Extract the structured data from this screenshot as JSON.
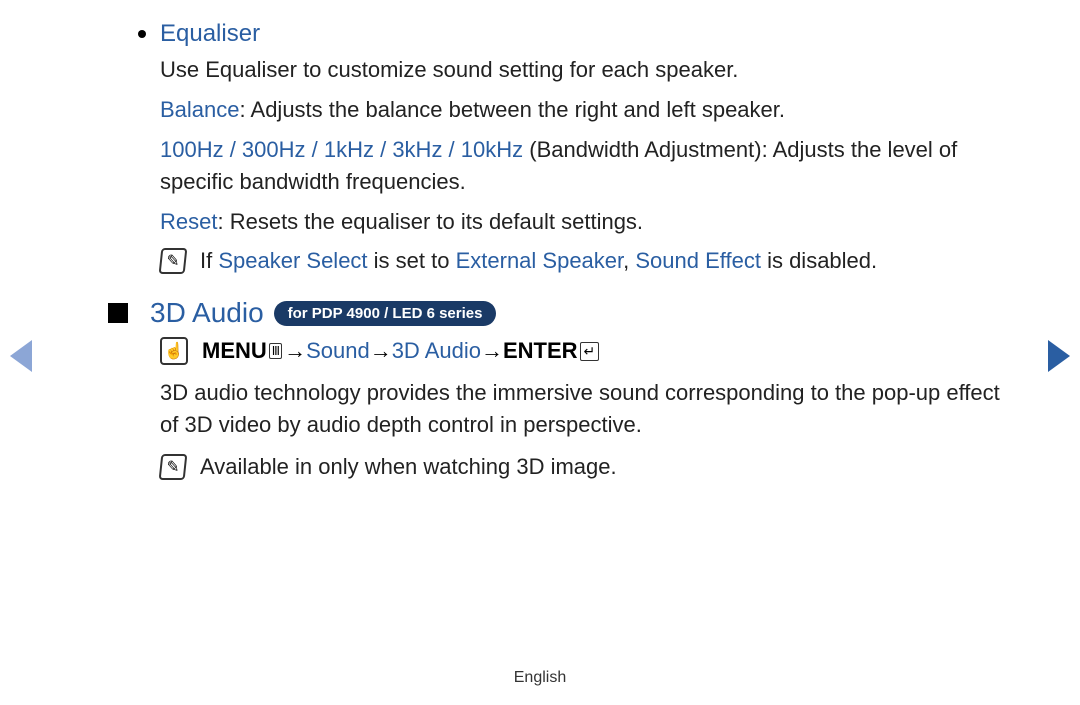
{
  "colors": {
    "accent": "#2a5ea2",
    "badge_bg": "#1a3a66",
    "arrow_left": "#8ca6d6",
    "arrow_right": "#2a5ea2",
    "text": "#222222",
    "background": "#ffffff"
  },
  "equaliser": {
    "title": "Equaliser",
    "intro": "Use Equaliser to customize sound setting for each speaker.",
    "balance_label": "Balance",
    "balance_text": ": Adjusts the balance between the right and left speaker.",
    "freq_label": "100Hz / 300Hz / 1kHz / 3kHz / 10kHz",
    "freq_text": " (Bandwidth Adjustment): Adjusts the level of specific bandwidth frequencies.",
    "reset_label": "Reset",
    "reset_text": ": Resets the equaliser to its default settings.",
    "note_prefix": "If ",
    "note_speaker_select": "Speaker Select",
    "note_mid1": " is set to ",
    "note_external": "External Speaker",
    "note_sep": ", ",
    "note_sound_effect": "Sound Effect",
    "note_suffix": " is disabled."
  },
  "audio3d": {
    "title": "3D Audio",
    "badge": "for PDP 4900 / LED 6 series",
    "menu_label": "MENU",
    "arrow": " → ",
    "sound": "Sound",
    "section": "3D Audio",
    "enter": "ENTER",
    "body": "3D audio technology provides the immersive sound corresponding to the pop-up effect of 3D video by audio depth control in perspective.",
    "note": "Available in only when watching 3D image."
  },
  "footer": "English"
}
